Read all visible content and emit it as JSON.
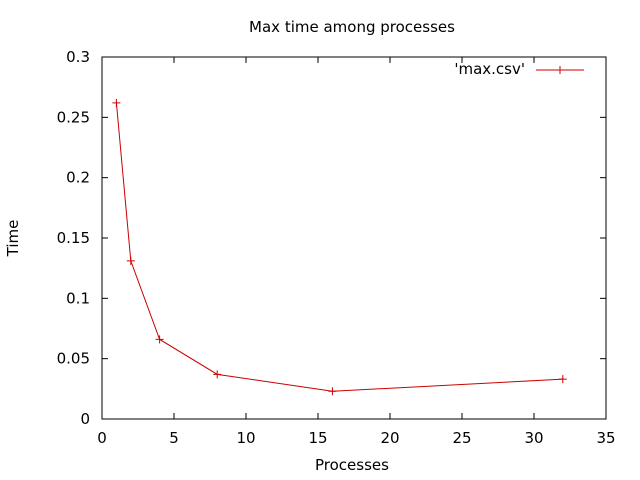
{
  "chart_data": {
    "type": "line",
    "title": "Max time among processes",
    "xlabel": "Processes",
    "ylabel": "Time",
    "xlim": [
      0,
      35
    ],
    "ylim": [
      0,
      0.3
    ],
    "xticks": [
      0,
      5,
      10,
      15,
      20,
      25,
      30,
      35
    ],
    "yticks": [
      0,
      0.05,
      0.1,
      0.15,
      0.2,
      0.25,
      0.3
    ],
    "xtick_labels": [
      "0",
      "5",
      "10",
      "15",
      "20",
      "25",
      "30",
      "35"
    ],
    "ytick_labels": [
      "0",
      "0.05",
      "0.1",
      "0.15",
      "0.2",
      "0.25",
      "0.3"
    ],
    "grid": false,
    "legend_position": "top-right",
    "series": [
      {
        "name": "'max.csv'",
        "color": "#cc0000",
        "marker": "plus",
        "x": [
          1,
          2,
          4,
          8,
          16,
          32
        ],
        "y": [
          0.262,
          0.131,
          0.066,
          0.037,
          0.023,
          0.033
        ]
      }
    ]
  }
}
